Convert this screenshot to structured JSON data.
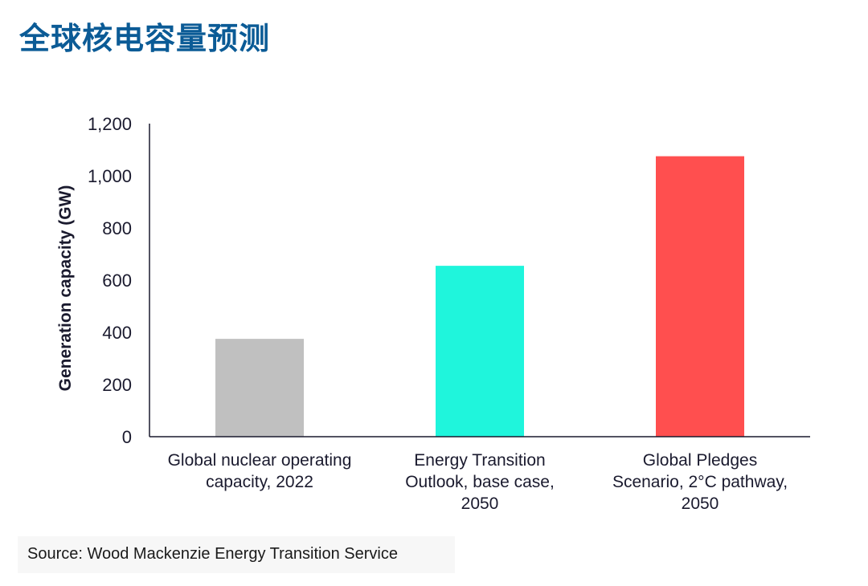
{
  "title": "全球核电容量预测",
  "source": "Source: Wood Mackenzie Energy Transition Service",
  "colors": {
    "title": "#0b5b96",
    "axis_text": "#1a1a2e",
    "axis_line": "#1a1a2e"
  },
  "chart_data": {
    "type": "bar",
    "title": "全球核电容量预测",
    "xlabel": "",
    "ylabel": "Generation capacity (GW)",
    "ylim": [
      0,
      1200
    ],
    "yticks": [
      0,
      200,
      400,
      600,
      800,
      1000,
      1200
    ],
    "ytick_labels": [
      "0",
      "200",
      "400",
      "600",
      "800",
      "1,000",
      "1,200"
    ],
    "grid": false,
    "categories": [
      [
        "Global nuclear operating",
        "capacity, 2022"
      ],
      [
        "Energy Transition",
        "Outlook, base case,",
        "2050"
      ],
      [
        "Global Pledges",
        "Scenario, 2°C pathway,",
        "2050"
      ]
    ],
    "values": [
      375,
      655,
      1075
    ],
    "bar_colors": [
      "#c0c0c0",
      "#1ff5dc",
      "#ff4f4f"
    ]
  }
}
